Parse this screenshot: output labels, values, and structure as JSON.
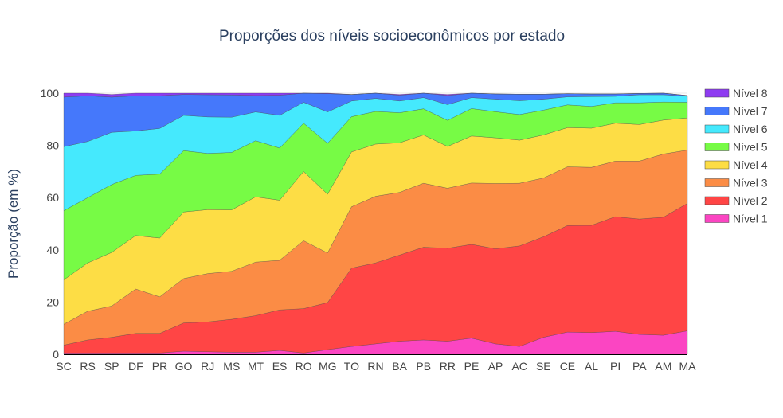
{
  "chart_data": {
    "type": "area",
    "title": "Proporções dos níveis socioeconômicos por estado",
    "xlabel": "",
    "ylabel": "Proporção (em %)",
    "ylim": [
      0,
      100
    ],
    "yticks": [
      0,
      20,
      40,
      60,
      80,
      100
    ],
    "stacked": true,
    "legend_position": "right",
    "categories": [
      "SC",
      "RS",
      "SP",
      "DF",
      "PR",
      "GO",
      "RJ",
      "MS",
      "MT",
      "ES",
      "RO",
      "MG",
      "TO",
      "RN",
      "BA",
      "PB",
      "RR",
      "PE",
      "AP",
      "AC",
      "SE",
      "CE",
      "AL",
      "PI",
      "PA",
      "AM",
      "MA"
    ],
    "series": [
      {
        "name": "Nível 1",
        "color": "#fb45c2",
        "values": [
          0.5,
          0.5,
          0.5,
          0.5,
          0.5,
          1.2,
          1,
          0.8,
          0.8,
          1.5,
          0.5,
          1.8,
          3,
          4,
          5,
          5.5,
          5,
          6.2,
          4,
          3,
          6.5,
          8.5,
          8.3,
          8.8,
          7.6,
          7.3,
          9
        ]
      },
      {
        "name": "Nível 2",
        "color": "#ff4545",
        "values": [
          3,
          5,
          6,
          7.5,
          7.5,
          10.8,
          11.4,
          12.6,
          14,
          15.5,
          17,
          18,
          30,
          31,
          33,
          35.5,
          35.6,
          35.9,
          36.4,
          38.5,
          38.5,
          40.8,
          41.1,
          43.9,
          44.2,
          45.2,
          48.8
        ]
      },
      {
        "name": "Nível 3",
        "color": "#fb8c45",
        "values": [
          8,
          11,
          12,
          17,
          14,
          17,
          18.5,
          18.4,
          20.5,
          19,
          26,
          19,
          23.5,
          25.5,
          24,
          24.5,
          23,
          23.5,
          25,
          24,
          22.5,
          22.5,
          22.2,
          21.3,
          22.2,
          24.2,
          20.4
        ]
      },
      {
        "name": "Nível 4",
        "color": "#fddd45",
        "values": [
          17,
          18.5,
          20.5,
          20.5,
          22.5,
          25.5,
          24.5,
          23.5,
          25,
          23,
          26.5,
          22.5,
          21,
          20,
          19,
          18.5,
          16,
          18,
          17.5,
          16.5,
          16.5,
          15,
          15,
          14.5,
          14,
          13,
          12.3
        ]
      },
      {
        "name": "Nível 5",
        "color": "#77fb45",
        "values": [
          26.5,
          25,
          26,
          23,
          24.5,
          23.5,
          21.5,
          22,
          21.5,
          20,
          18.5,
          19.5,
          13.5,
          12.5,
          11.5,
          10,
          10,
          10.5,
          10,
          9.8,
          9.5,
          8.7,
          8.3,
          7.8,
          8.3,
          6.9,
          6
        ]
      },
      {
        "name": "Nível 6",
        "color": "#45e9fd",
        "values": [
          24.5,
          21.5,
          20,
          17,
          17.5,
          13.5,
          14,
          13.5,
          11,
          12.5,
          8,
          12,
          6,
          5,
          4.5,
          4.3,
          6,
          4.2,
          4.8,
          5.3,
          4.2,
          3.1,
          3.8,
          2.5,
          3.1,
          2.8,
          2.3
        ]
      },
      {
        "name": "Nível 7",
        "color": "#4578fb",
        "values": [
          19,
          17.5,
          13.5,
          13.5,
          12.5,
          8,
          8.5,
          8.5,
          6.3,
          7.7,
          7.5,
          7,
          2.5,
          2.5,
          2.2,
          2.2,
          3.5,
          1.9,
          2,
          2.5,
          1.9,
          1.2,
          1,
          0.9,
          0.5,
          0.6,
          0.3
        ]
      },
      {
        "name": "Nível 8",
        "color": "#8e3cf1",
        "values": [
          1.5,
          1,
          1,
          1,
          1,
          0.5,
          0.6,
          0.7,
          0.9,
          0.8,
          0.5,
          0.2,
          0,
          0,
          0.3,
          0,
          0.4,
          0,
          0,
          0,
          0,
          0,
          0,
          0,
          0,
          0,
          0
        ]
      }
    ]
  }
}
